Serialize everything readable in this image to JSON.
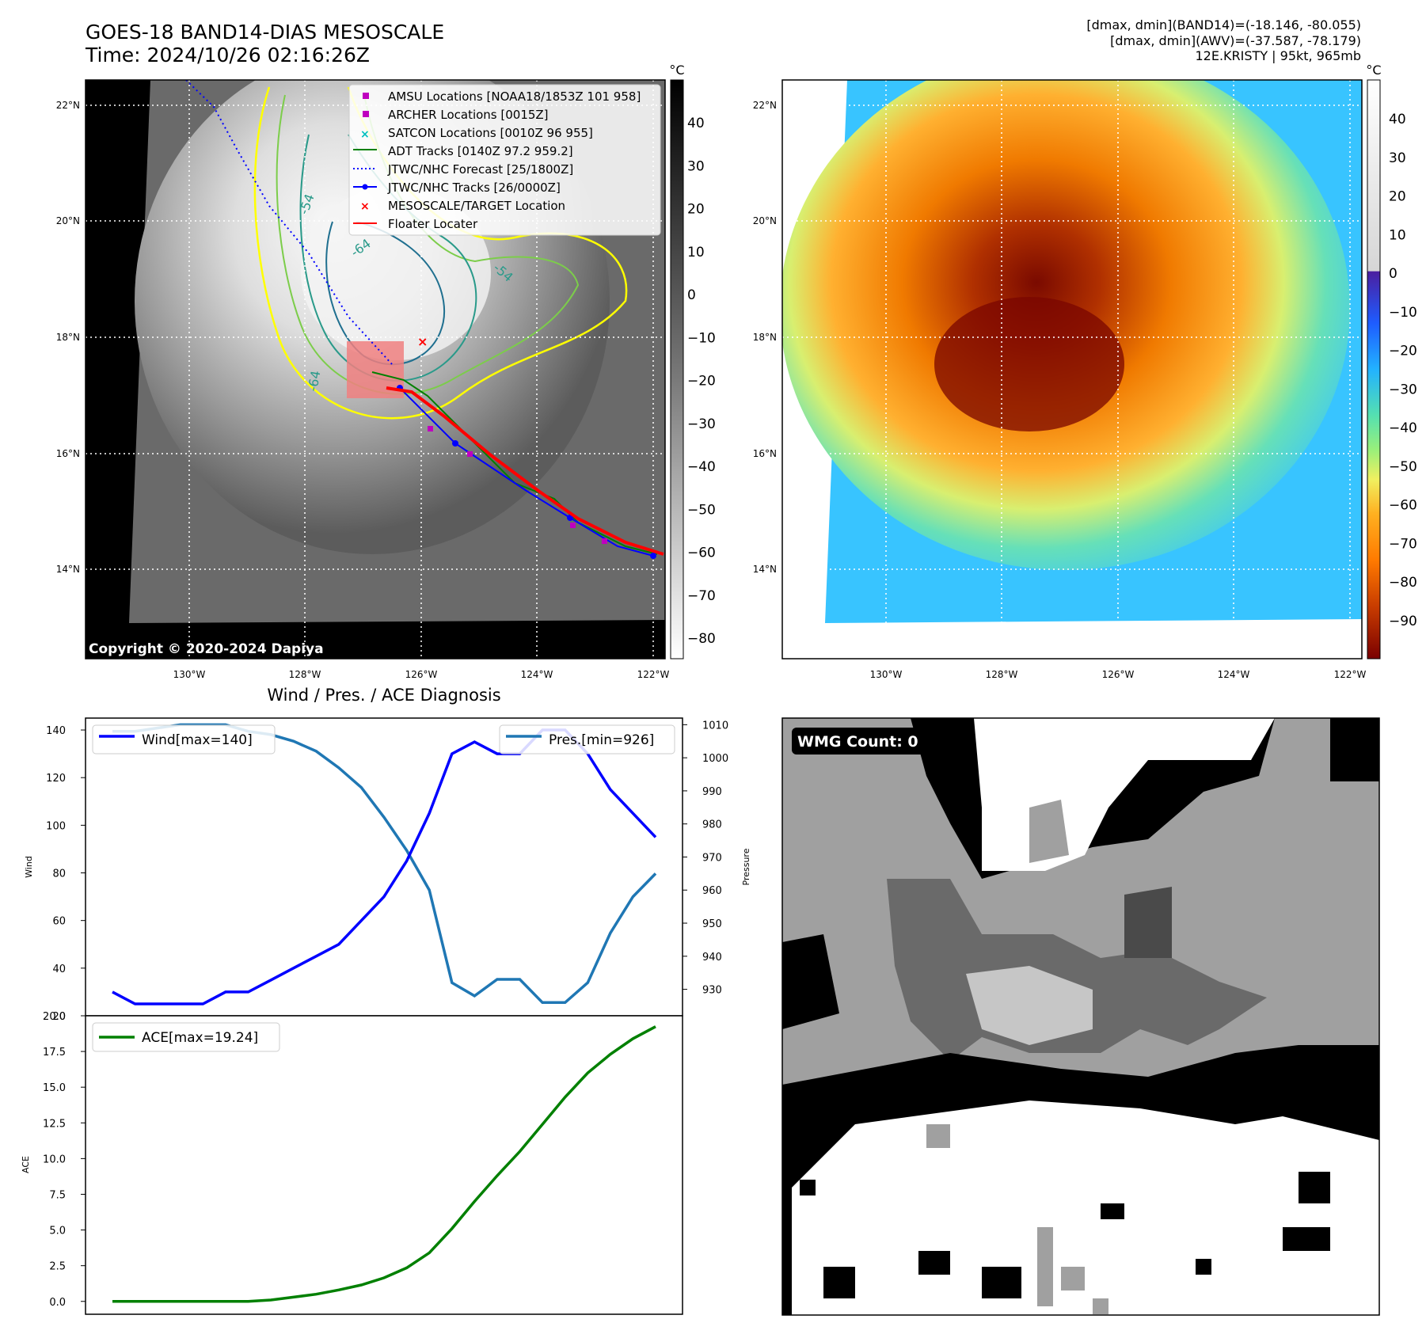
{
  "header": {
    "title_line1": "GOES-18 BAND14-DIAS MESOSCALE",
    "title_line2": "Time: 2024/10/26 02:16:26Z",
    "info_line1": "[dmax, dmin](BAND14)=(-18.146, -80.055)",
    "info_line2": "[dmax, dmin](AWV)=(-37.587, -78.179)",
    "info_line3": "12E.KRISTY | 95kt, 965mb"
  },
  "map": {
    "lat_labels": [
      "22°N",
      "20°N",
      "18°N",
      "16°N",
      "14°N"
    ],
    "lon_labels": [
      "130°W",
      "128°W",
      "126°W",
      "124°W",
      "122°W"
    ],
    "copyright": "Copyright © 2020-2024 Dapiya",
    "contour_labels": [
      "-54",
      "-64",
      "-54",
      "-64"
    ],
    "legend": [
      {
        "label": "AMSU Locations [NOAA18/1853Z 101 958]",
        "color": "#bf00bf",
        "kind": "square"
      },
      {
        "label": "ARCHER Locations [0015Z]",
        "color": "#bf00bf",
        "kind": "square"
      },
      {
        "label": "SATCON Locations [0010Z 96 955]",
        "color": "#00bfbf",
        "kind": "x"
      },
      {
        "label": "ADT Tracks [0140Z 97.2 959.2]",
        "color": "#008000",
        "kind": "line"
      },
      {
        "label": "JTWC/NHC Forecast [25/1800Z]",
        "color": "#0000ff",
        "kind": "dotted"
      },
      {
        "label": "JTWC/NHC Tracks [26/0000Z]",
        "color": "#0000ff",
        "kind": "line-dot"
      },
      {
        "label": "MESOSCALE/TARGET Location",
        "color": "#ff0000",
        "kind": "x"
      },
      {
        "label": "Floater Locater",
        "color": "#ff0000",
        "kind": "line"
      }
    ]
  },
  "colorbar_gray": {
    "unit": "°C",
    "ticks": [
      "40",
      "30",
      "20",
      "10",
      "0",
      "−10",
      "−20",
      "−30",
      "−40",
      "−50",
      "−60",
      "−70",
      "−80"
    ]
  },
  "colorbar_color": {
    "unit": "°C",
    "ticks": [
      "40",
      "30",
      "20",
      "10",
      "0",
      "−10",
      "−20",
      "−30",
      "−40",
      "−50",
      "−60",
      "−70",
      "−80",
      "−90"
    ]
  },
  "wmg": {
    "label": "WMG Count: 0"
  },
  "colors": {
    "wind": "#0000ff",
    "pressure": "#1f77b4",
    "ace": "#008000",
    "track": "#ff0000"
  },
  "chart_data": [
    {
      "type": "line",
      "title": "Wind / Pres. / ACE Diagnosis",
      "ylabel": "Wind",
      "ylim": [
        20,
        145
      ],
      "yticks": [
        "140",
        "120",
        "100",
        "80",
        "60",
        "40",
        "20"
      ],
      "series": [
        {
          "name": "Wind[max=140]",
          "axis": "left",
          "values": [
            30,
            25,
            25,
            25,
            25,
            30,
            30,
            35,
            40,
            45,
            50,
            60,
            70,
            85,
            105,
            130,
            135,
            130,
            130,
            140,
            140,
            130,
            115,
            105,
            95
          ]
        }
      ]
    },
    {
      "type": "line",
      "ylabel": "Pressure",
      "ylim": [
        922,
        1012
      ],
      "yticks": [
        "1010",
        "1000",
        "990",
        "980",
        "970",
        "960",
        "950",
        "940",
        "930"
      ],
      "series": [
        {
          "name": "Pres.[min=926]",
          "axis": "right",
          "values": [
            1008,
            1008,
            1009,
            1010,
            1010,
            1010,
            1008,
            1007,
            1005,
            1002,
            997,
            991,
            982,
            972,
            960,
            932,
            928,
            933,
            933,
            926,
            926,
            932,
            947,
            958,
            965
          ]
        }
      ]
    },
    {
      "type": "line",
      "ylabel": "ACE",
      "ylim": [
        -0.9,
        20.0
      ],
      "yticks": [
        "20.0",
        "17.5",
        "15.0",
        "12.5",
        "10.0",
        "7.5",
        "5.0",
        "2.5",
        "0.0"
      ],
      "series": [
        {
          "name": "ACE[max=19.24]",
          "values": [
            0.0,
            0.0,
            0.0,
            0.0,
            0.0,
            0.0,
            0.0,
            0.1,
            0.3,
            0.5,
            0.8,
            1.15,
            1.65,
            2.35,
            3.4,
            5.1,
            7.0,
            8.8,
            10.5,
            12.4,
            14.3,
            16.0,
            17.3,
            18.4,
            19.24
          ]
        }
      ]
    }
  ]
}
